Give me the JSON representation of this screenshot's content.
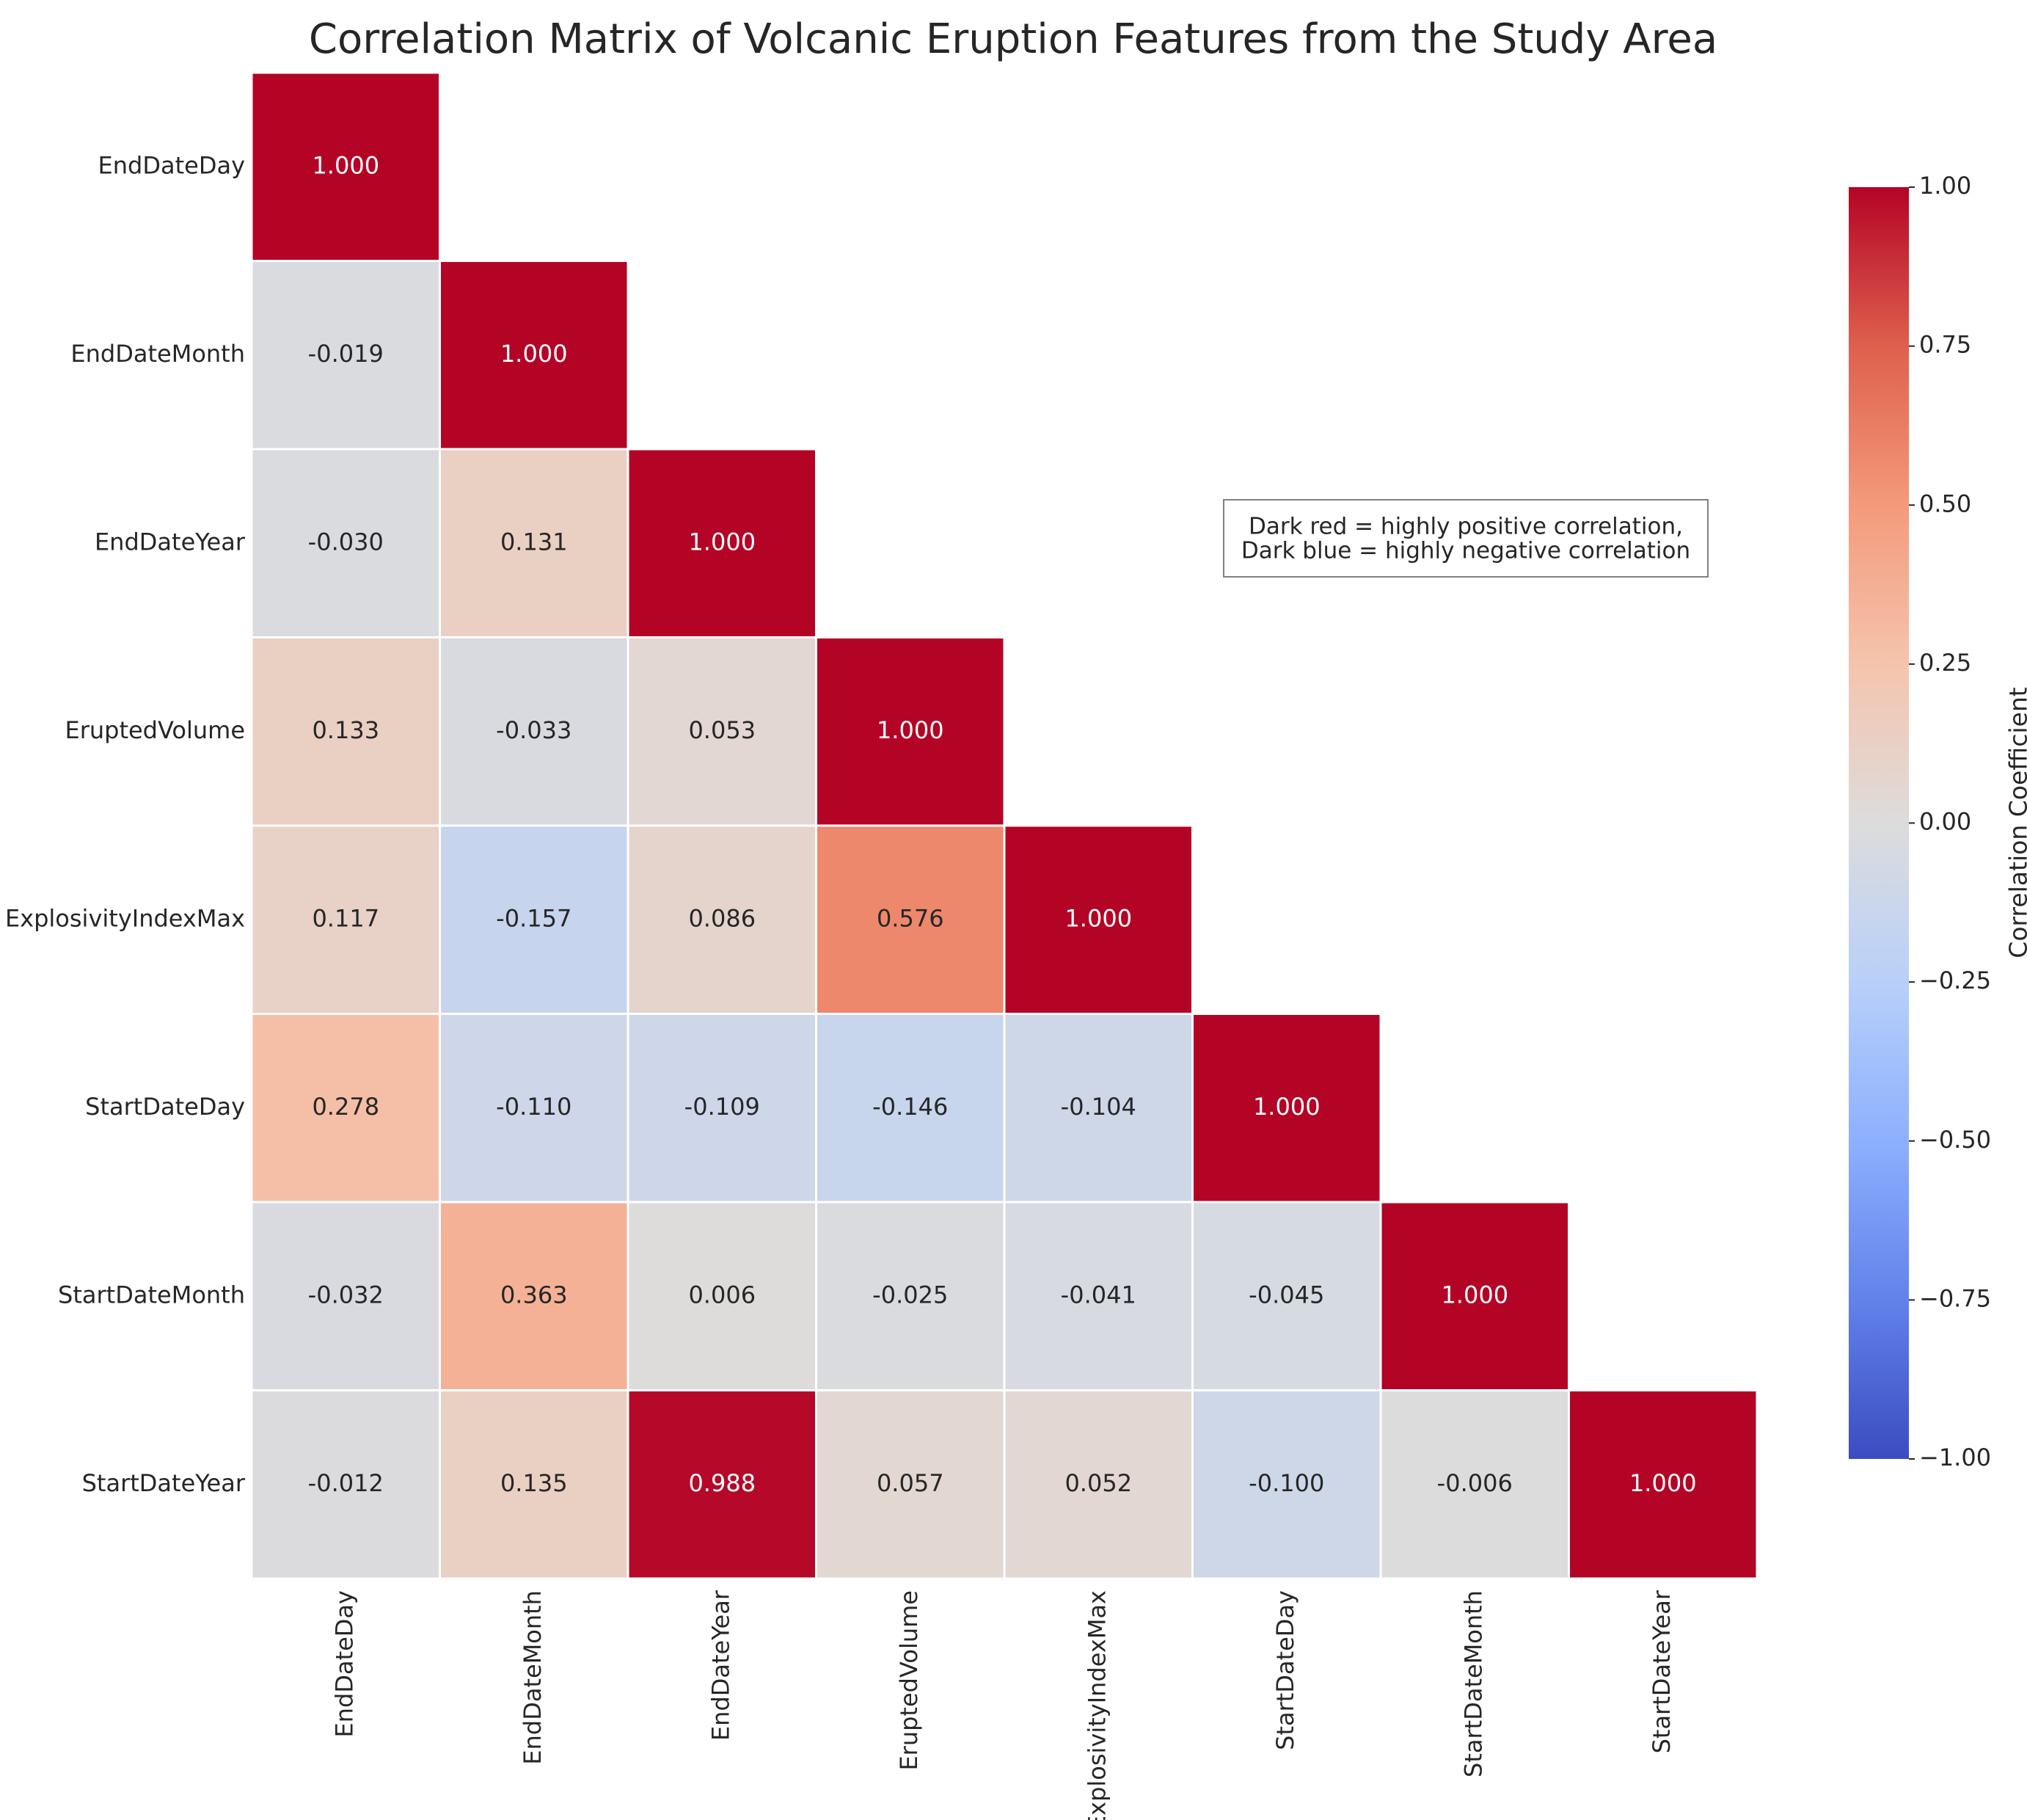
{
  "chart_data": {
    "type": "heatmap",
    "title": "Correlation Matrix of Volcanic Eruption Features from the Study Area",
    "variables": [
      "EndDateDay",
      "EndDateMonth",
      "EndDateYear",
      "EruptedVolume",
      "ExplosivityIndexMax",
      "StartDateDay",
      "StartDateMonth",
      "StartDateYear"
    ],
    "matrix": [
      [
        1.0
      ],
      [
        -0.019,
        1.0
      ],
      [
        -0.03,
        0.131,
        1.0
      ],
      [
        0.133,
        -0.033,
        0.053,
        1.0
      ],
      [
        0.117,
        -0.157,
        0.086,
        0.576,
        1.0
      ],
      [
        0.278,
        -0.11,
        -0.109,
        -0.146,
        -0.104,
        1.0
      ],
      [
        -0.032,
        0.363,
        0.006,
        -0.025,
        -0.041,
        -0.045,
        1.0
      ],
      [
        -0.012,
        0.135,
        0.988,
        0.057,
        0.052,
        -0.1,
        -0.006,
        1.0
      ]
    ],
    "value_format": "3 decimals",
    "mask": "upper triangle hidden",
    "colormap": "coolwarm",
    "vmin": -1.0,
    "vmax": 1.0,
    "colorbar": {
      "label": "Correlation Coefficient",
      "ticks": [
        "1.00",
        "0.75",
        "0.50",
        "0.25",
        "0.00",
        "−0.25",
        "−0.50",
        "−0.75",
        "−1.00"
      ],
      "tick_values": [
        1.0,
        0.75,
        0.5,
        0.25,
        0.0,
        -0.25,
        -0.5,
        -0.75,
        -1.0
      ]
    },
    "annotation": {
      "line1": "Dark red = highly positive correlation,",
      "line2": "Dark blue = highly negative correlation"
    },
    "colors": {
      "dark_red": "#b40426",
      "dark_blue": "#3b4cc0",
      "neutral": "#dddcdc",
      "cell_border": "#ffffff"
    }
  }
}
